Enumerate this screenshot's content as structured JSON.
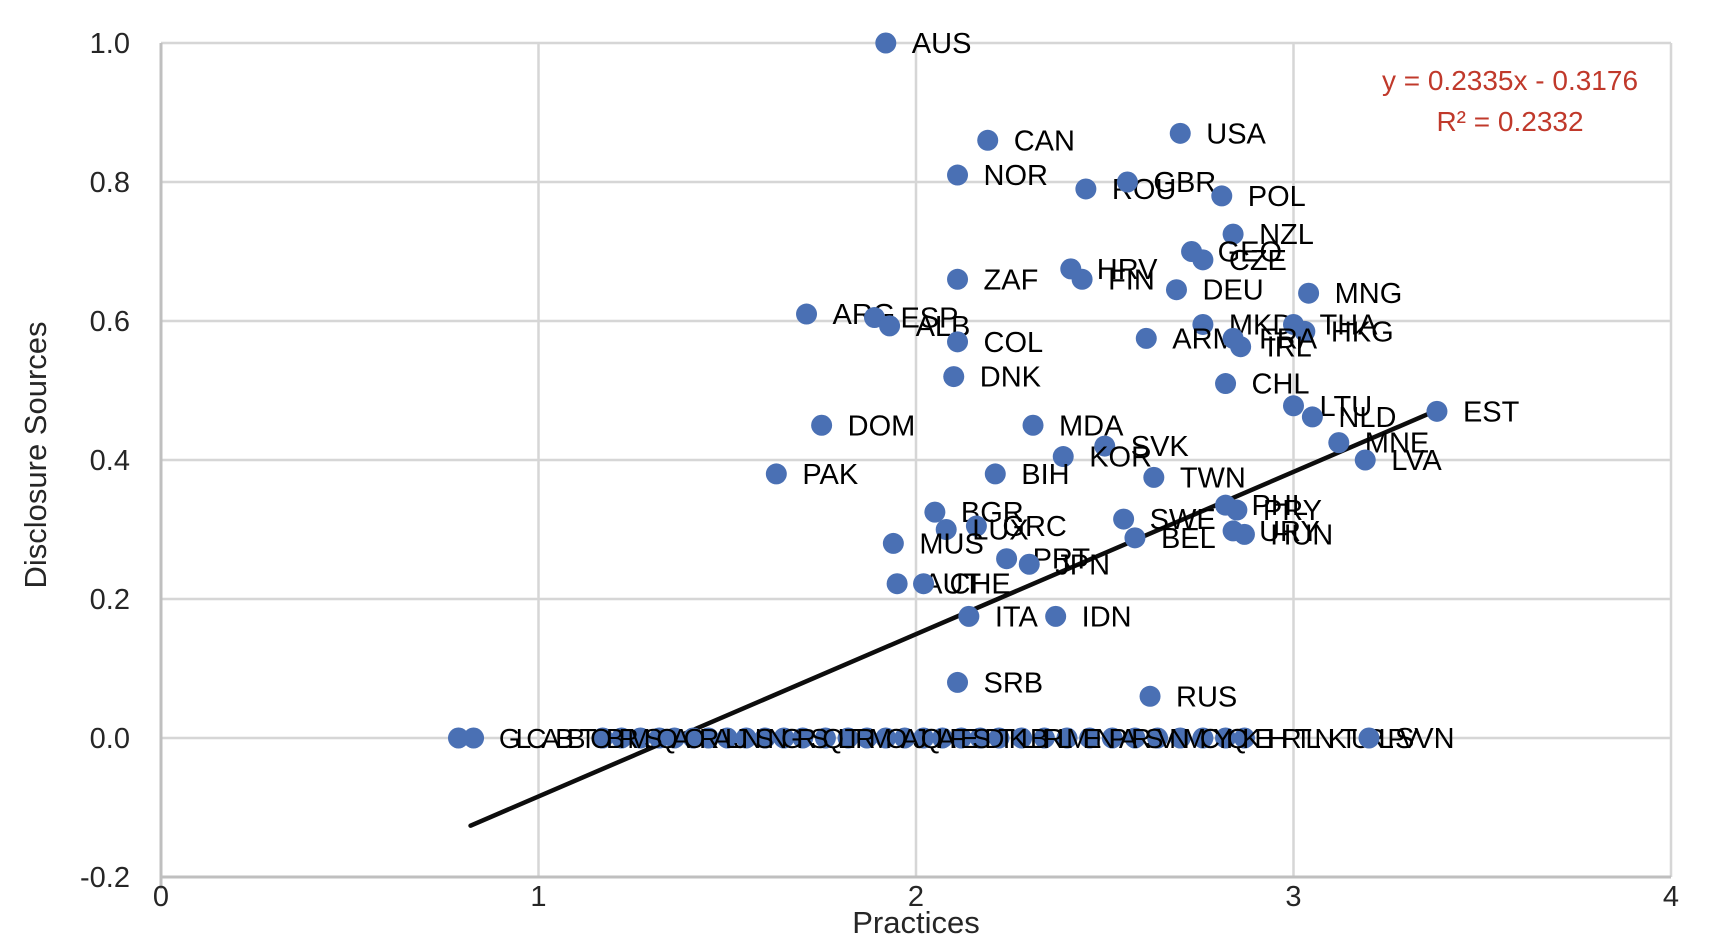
{
  "chart_data": {
    "type": "scatter",
    "title": "",
    "xlabel": "Practices",
    "ylabel": "Disclosure Sources",
    "xlim": [
      0,
      4
    ],
    "ylim": [
      -0.2,
      1.0
    ],
    "grid": true,
    "legend": "none",
    "marker_color": "#4a70b4",
    "gridline_color": "#d6d6d6",
    "axisline_color": "#bfbfbf",
    "label_color": "#000000",
    "tick_color": "#262626",
    "x_ticks": [
      {
        "label": "0",
        "v": 0
      },
      {
        "label": "1",
        "v": 1
      },
      {
        "label": "2",
        "v": 2
      },
      {
        "label": "3",
        "v": 3
      },
      {
        "label": "4",
        "v": 4
      }
    ],
    "y_ticks": [
      {
        "label": "1.0",
        "v": 1.0
      },
      {
        "label": "0.8",
        "v": 0.8
      },
      {
        "label": "0.6",
        "v": 0.6
      },
      {
        "label": "0.4",
        "v": 0.4
      },
      {
        "label": "0.2",
        "v": 0.2
      },
      {
        "label": "0.0",
        "v": 0.0
      },
      {
        "label": "-0.2",
        "v": -0.2
      }
    ],
    "trendline": {
      "equation": "y = 0.2335x - 0.3176",
      "r_squared": "R² = 0.2332",
      "slope": 0.2335,
      "intercept": -0.3176,
      "x_start": 0.82,
      "x_end": 3.38,
      "color": "#0d0d0d",
      "label_color": "#c0392b"
    },
    "points": [
      {
        "label": "AUS",
        "x": 1.92,
        "y": 1.0
      },
      {
        "label": "CAN",
        "x": 2.19,
        "y": 0.86
      },
      {
        "label": "USA",
        "x": 2.7,
        "y": 0.87
      },
      {
        "label": "NOR",
        "x": 2.11,
        "y": 0.81
      },
      {
        "label": "ROU",
        "x": 2.45,
        "y": 0.79
      },
      {
        "label": "GBR",
        "x": 2.56,
        "y": 0.8
      },
      {
        "label": "POL",
        "x": 2.81,
        "y": 0.78
      },
      {
        "label": "NZL",
        "x": 2.84,
        "y": 0.725
      },
      {
        "label": "GEO",
        "x": 2.73,
        "y": 0.7
      },
      {
        "label": "CZE",
        "x": 2.76,
        "y": 0.688
      },
      {
        "label": "HRV",
        "x": 2.41,
        "y": 0.675
      },
      {
        "label": "FIN",
        "x": 2.44,
        "y": 0.66
      },
      {
        "label": "ZAF",
        "x": 2.11,
        "y": 0.66
      },
      {
        "label": "DEU",
        "x": 2.69,
        "y": 0.645
      },
      {
        "label": "MNG",
        "x": 3.04,
        "y": 0.64
      },
      {
        "label": "ARG",
        "x": 1.71,
        "y": 0.61
      },
      {
        "label": "ESP",
        "x": 1.89,
        "y": 0.605
      },
      {
        "label": "ALB",
        "x": 1.93,
        "y": 0.593
      },
      {
        "label": "MKD",
        "x": 2.76,
        "y": 0.595
      },
      {
        "label": "THA",
        "x": 3.0,
        "y": 0.595
      },
      {
        "label": "HKG",
        "x": 3.03,
        "y": 0.585
      },
      {
        "label": "ARM",
        "x": 2.61,
        "y": 0.575
      },
      {
        "label": "FRA",
        "x": 2.84,
        "y": 0.575
      },
      {
        "label": "IRL",
        "x": 2.86,
        "y": 0.563
      },
      {
        "label": "COL",
        "x": 2.11,
        "y": 0.57
      },
      {
        "label": "DNK",
        "x": 2.1,
        "y": 0.52
      },
      {
        "label": "CHL",
        "x": 2.82,
        "y": 0.51
      },
      {
        "label": "LTU",
        "x": 3.0,
        "y": 0.478
      },
      {
        "label": "NLD",
        "x": 3.05,
        "y": 0.462
      },
      {
        "label": "EST",
        "x": 3.38,
        "y": 0.47
      },
      {
        "label": "DOM",
        "x": 1.75,
        "y": 0.45
      },
      {
        "label": "MDA",
        "x": 2.31,
        "y": 0.45
      },
      {
        "label": "MNE",
        "x": 3.12,
        "y": 0.425
      },
      {
        "label": "SVK",
        "x": 2.5,
        "y": 0.42
      },
      {
        "label": "KOR",
        "x": 2.39,
        "y": 0.405
      },
      {
        "label": "LVA",
        "x": 3.19,
        "y": 0.4
      },
      {
        "label": "PAK",
        "x": 1.63,
        "y": 0.38
      },
      {
        "label": "BIH",
        "x": 2.21,
        "y": 0.38
      },
      {
        "label": "TWN",
        "x": 2.63,
        "y": 0.375
      },
      {
        "label": "PHL",
        "x": 2.82,
        "y": 0.335
      },
      {
        "label": "PRY",
        "x": 2.85,
        "y": 0.328
      },
      {
        "label": "BGR",
        "x": 2.05,
        "y": 0.325
      },
      {
        "label": "SWE",
        "x": 2.55,
        "y": 0.315
      },
      {
        "label": "GRC",
        "x": 2.16,
        "y": 0.305
      },
      {
        "label": "LUX",
        "x": 2.08,
        "y": 0.3
      },
      {
        "label": "URY",
        "x": 2.84,
        "y": 0.298
      },
      {
        "label": "HUN",
        "x": 2.87,
        "y": 0.293
      },
      {
        "label": "BEL",
        "x": 2.58,
        "y": 0.288
      },
      {
        "label": "MUS",
        "x": 1.94,
        "y": 0.28
      },
      {
        "label": "PRT",
        "x": 2.24,
        "y": 0.258
      },
      {
        "label": "JPN",
        "x": 2.3,
        "y": 0.25
      },
      {
        "label": "AUT",
        "x": 1.95,
        "y": 0.222
      },
      {
        "label": "CHE",
        "x": 2.02,
        "y": 0.222
      },
      {
        "label": "ITA",
        "x": 2.14,
        "y": 0.175
      },
      {
        "label": "IDN",
        "x": 2.37,
        "y": 0.175
      },
      {
        "label": "SRB",
        "x": 2.11,
        "y": 0.08
      },
      {
        "label": "RUS",
        "x": 2.62,
        "y": 0.06
      },
      {
        "label": "SVN",
        "x": 3.2,
        "y": 0.0
      }
    ],
    "zero_row": {
      "note": "dense row of points at y=0 whose country-code labels overlap into an illegible black smear",
      "xs": [
        0.788,
        0.828,
        1.17,
        1.22,
        1.27,
        1.32,
        1.36,
        1.41,
        1.45,
        1.5,
        1.55,
        1.6,
        1.65,
        1.7,
        1.76,
        1.82,
        1.87,
        1.92,
        1.97,
        2.02,
        2.07,
        2.12,
        2.17,
        2.22,
        2.28,
        2.34,
        2.4,
        2.46,
        2.52,
        2.58,
        2.64,
        2.7,
        2.76,
        2.82,
        2.87
      ],
      "smear_segments": [
        {
          "text": "GLCAB",
          "x": 0.895,
          "ls": -5
        },
        {
          "text": "BTOBR",
          "x": 1.075,
          "ls": -6
        },
        {
          "text": "MSQAORALJNSNGRSQLTRMOAJQIAFESDTKLBIRLMENPARSVNMCYIQKEIHRTLNKTURLPV",
          "x": 1.235,
          "ls": -6.5
        }
      ]
    }
  }
}
